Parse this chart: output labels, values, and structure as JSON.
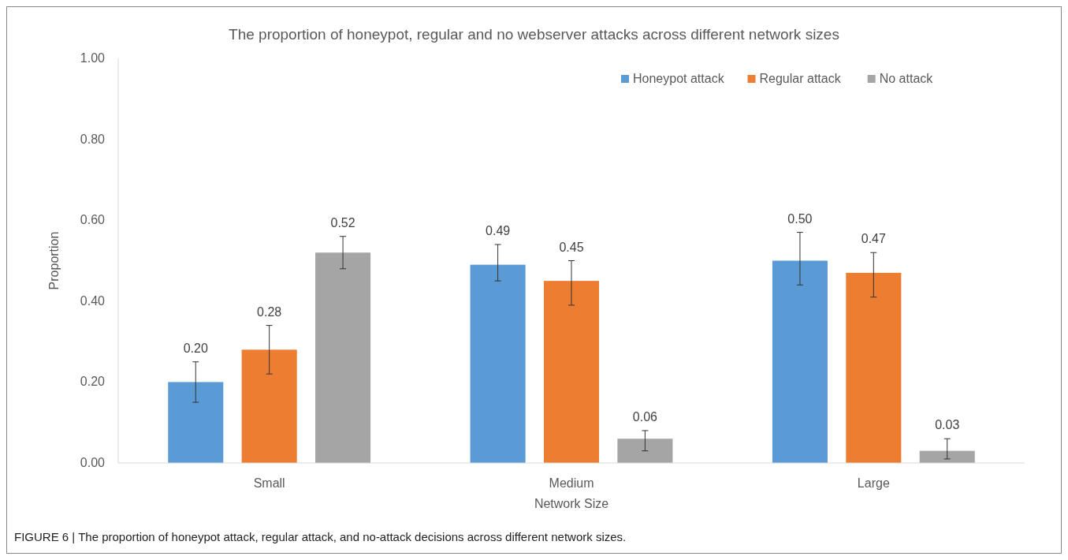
{
  "chart_data": {
    "type": "bar",
    "title": "The proportion of honeypot, regular and no webserver attacks across different network sizes",
    "xlabel": "Network Size",
    "ylabel": "Proportion",
    "categories": [
      "Small",
      "Medium",
      "Large"
    ],
    "series": [
      {
        "name": "Honeypot attack",
        "color": "#5b9bd5",
        "values": [
          0.2,
          0.49,
          0.5
        ],
        "value_labels": [
          "0.20",
          "0.49",
          "0.50"
        ],
        "errors": [
          [
            0.15,
            0.25
          ],
          [
            0.45,
            0.54
          ],
          [
            0.44,
            0.57
          ]
        ]
      },
      {
        "name": "Regular attack",
        "color": "#ed7d31",
        "values": [
          0.28,
          0.45,
          0.47
        ],
        "value_labels": [
          "0.28",
          "0.45",
          "0.47"
        ],
        "errors": [
          [
            0.22,
            0.34
          ],
          [
            0.39,
            0.5
          ],
          [
            0.41,
            0.52
          ]
        ]
      },
      {
        "name": "No attack",
        "color": "#a5a5a5",
        "values": [
          0.52,
          0.06,
          0.03
        ],
        "value_labels": [
          "0.52",
          "0.06",
          "0.03"
        ],
        "errors": [
          [
            0.48,
            0.56
          ],
          [
            0.03,
            0.08
          ],
          [
            0.01,
            0.06
          ]
        ]
      }
    ],
    "ylim": [
      0,
      1
    ],
    "yticks": [
      {
        "value": 0,
        "label": "0.00"
      },
      {
        "value": 0.2,
        "label": "0.20"
      },
      {
        "value": 0.4,
        "label": "0.40"
      },
      {
        "value": 0.6,
        "label": "0.60"
      },
      {
        "value": 0.8,
        "label": "0.80"
      },
      {
        "value": 1,
        "label": "1.00"
      }
    ],
    "legend": "top right",
    "annotations": [
      "FIGURE 6 | The proportion of honeypot attack, regular attack, and no-attack decisions across different network sizes."
    ]
  }
}
